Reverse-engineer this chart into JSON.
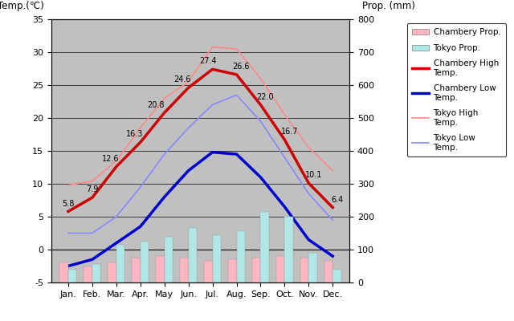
{
  "months": [
    "Jan.",
    "Feb.",
    "Mar.",
    "Apr.",
    "May",
    "Jun.",
    "Jul.",
    "Aug.",
    "Sep.",
    "Oct.",
    "Nov.",
    "Dec."
  ],
  "chambery_high": [
    5.8,
    7.9,
    12.6,
    16.3,
    20.8,
    24.6,
    27.4,
    26.6,
    22.0,
    16.7,
    10.1,
    6.4
  ],
  "chambery_low": [
    -2.5,
    -1.5,
    1.0,
    3.5,
    8.0,
    12.0,
    14.8,
    14.5,
    11.0,
    6.5,
    1.5,
    -1.0
  ],
  "tokyo_high": [
    9.8,
    10.4,
    13.5,
    18.5,
    23.0,
    25.5,
    30.8,
    30.5,
    26.0,
    20.5,
    15.5,
    12.0
  ],
  "tokyo_low": [
    2.5,
    2.5,
    5.0,
    9.5,
    14.5,
    18.5,
    22.0,
    23.5,
    19.5,
    14.0,
    8.5,
    4.5
  ],
  "chambery_precip_mm": [
    60,
    50,
    60,
    75,
    80,
    75,
    65,
    70,
    75,
    80,
    75,
    65
  ],
  "tokyo_precip_mm": [
    40,
    55,
    115,
    125,
    140,
    165,
    145,
    155,
    215,
    200,
    90,
    40
  ],
  "chambery_high_color": "#CC0000",
  "chambery_low_color": "#0000CC",
  "tokyo_high_color": "#FF8888",
  "tokyo_low_color": "#8888FF",
  "chambery_precip_color": "#FFB6C1",
  "tokyo_precip_color": "#B0E8E8",
  "bg_color": "#C8C8C8",
  "plot_bg": "#C0C0C0",
  "ylim_temp": [
    -5,
    35
  ],
  "ylim_precip": [
    0,
    800
  ],
  "ylabel_left": "Temp.(℃)",
  "ylabel_right": "Prop. (mm)",
  "legend_labels": [
    "Chambery Prop.",
    "Tokyo Prop.",
    "Chambery High\nTemp.",
    "Chambery Low\nTemp.",
    "Tokyo High\nTemp.",
    "Tokyo Low\nTemp."
  ],
  "ch_high_annotations": {
    "indices": [
      0,
      1,
      2,
      3,
      4,
      5,
      6,
      7,
      8,
      9,
      10,
      11
    ],
    "values": [
      5.8,
      7.9,
      12.6,
      16.3,
      20.8,
      24.6,
      27.4,
      26.6,
      22.0,
      16.7,
      10.1,
      6.4
    ],
    "dx": [
      0.0,
      0.0,
      -0.25,
      -0.25,
      -0.35,
      -0.25,
      -0.2,
      0.2,
      0.2,
      0.2,
      0.2,
      0.2
    ],
    "dy": [
      0.6,
      0.6,
      0.6,
      0.6,
      0.6,
      0.6,
      0.6,
      0.6,
      0.6,
      0.6,
      0.6,
      0.6
    ]
  }
}
